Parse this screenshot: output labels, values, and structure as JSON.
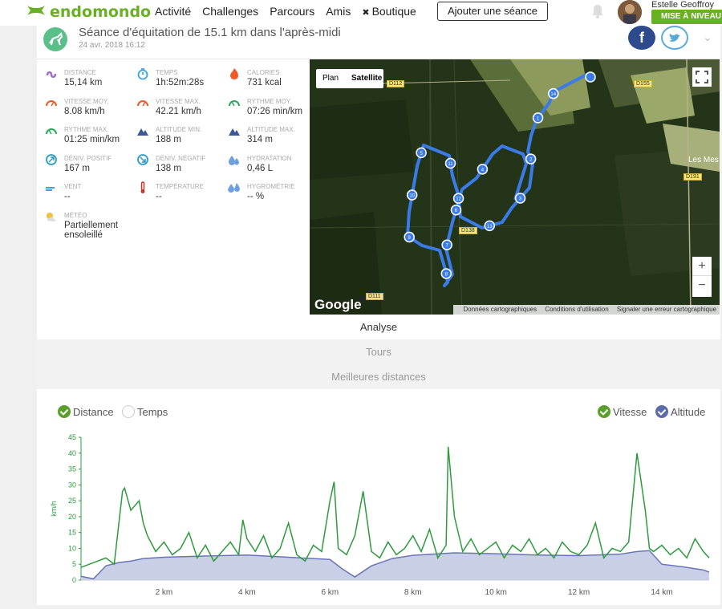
{
  "topbar": {
    "logo_text": "endomondo",
    "nav": [
      "Activité",
      "Challenges",
      "Parcours",
      "Amis",
      "Boutique"
    ],
    "add_button": "Ajouter une séance",
    "username": "Estelle Geoffroy",
    "upgrade": "MISE À NIVEAU"
  },
  "workout": {
    "title": "Séance d'équitation de 15.1 km dans l'après-midi",
    "date": "24 avr. 2018 16:12"
  },
  "share": {
    "facebook_label": "f"
  },
  "stats": [
    {
      "label": "DISTANCE",
      "value": "15,14 km",
      "icon": "distance-icon",
      "color": "#9b6fc9"
    },
    {
      "label": "TEMPS",
      "value": "1h:52m:28s",
      "icon": "stopwatch-icon",
      "color": "#3aa3e3"
    },
    {
      "label": "CALORIES",
      "value": "731 kcal",
      "icon": "flame-icon",
      "color": "#f05a28"
    },
    {
      "label": "VITESSE MOY.",
      "value": "8.08 km/h",
      "icon": "speedometer-icon",
      "color": "#f05a28"
    },
    {
      "label": "VITESSE MAX.",
      "value": "42.21 km/h",
      "icon": "speedometer-icon",
      "color": "#f05a28"
    },
    {
      "label": "RYTHME MOY.",
      "value": "07:26 min/km",
      "icon": "pace-icon",
      "color": "#2fa75a"
    },
    {
      "label": "RYTHME MAX.",
      "value": "01:25 min/km",
      "icon": "pace-icon",
      "color": "#2fa75a"
    },
    {
      "label": "ALTITUDE MIN.",
      "value": "188 m",
      "icon": "mountain-icon",
      "color": "#3b5998"
    },
    {
      "label": "ALTITUDE MAX.",
      "value": "314 m",
      "icon": "mountain-icon",
      "color": "#3b5998"
    },
    {
      "label": "DÉNIV. POSITIF",
      "value": "167 m",
      "icon": "ascent-icon",
      "color": "#2a9ac7"
    },
    {
      "label": "DÉNIV. NÉGATIF",
      "value": "138 m",
      "icon": "descent-icon",
      "color": "#2a9ac7"
    },
    {
      "label": "HYDRATATION",
      "value": "0,46 L",
      "icon": "drops-icon",
      "color": "#6f9fe0"
    },
    {
      "label": "VENT",
      "value": "--",
      "icon": "wind-icon",
      "color": "#3aa3e3"
    },
    {
      "label": "TEMPÉRATURE",
      "value": "--",
      "icon": "thermometer-icon",
      "color": "#c0392b"
    },
    {
      "label": "HYGROMÉTRIE",
      "value": "-- %",
      "icon": "humidity-icon",
      "color": "#6f9fe0"
    },
    {
      "label": "MÉTÉO",
      "value": "Partiellement ensoleillé",
      "icon": "weather-icon",
      "color": "#f0c040"
    }
  ],
  "map": {
    "toggle_plan": "Plan",
    "toggle_satellite": "Satellite",
    "zoom_in": "+",
    "zoom_out": "−",
    "google": "Google",
    "attribution": [
      "Données cartographiques",
      "Conditions d'utilisation",
      "Signaler une erreur cartographique"
    ],
    "roads": [
      "D112",
      "D155",
      "D191",
      "D138",
      "D111"
    ],
    "place": "Les Mes",
    "km_markers": [
      "1",
      "2",
      "3",
      "4",
      "5",
      "6",
      "7",
      "8",
      "9",
      "10",
      "11",
      "12",
      "13",
      "14"
    ]
  },
  "tabs": [
    "Analyse",
    "Tours",
    "Meilleures distances"
  ],
  "chart_toggles": {
    "distance": "Distance",
    "temps": "Temps",
    "vitesse": "Vitesse",
    "altitude": "Altitude"
  },
  "chart_data": {
    "type": "line",
    "xlabel": "",
    "ylabel": "km/h",
    "ylim": [
      0,
      45
    ],
    "yticks": [
      0,
      5,
      10,
      15,
      20,
      25,
      30,
      35,
      40,
      45
    ],
    "xlim": [
      0,
      15.14
    ],
    "xticks": [
      "2 km",
      "4 km",
      "6 km",
      "8 km",
      "10 km",
      "12 km",
      "14 km"
    ],
    "colors": {
      "speed": "#2e9a3e",
      "altitude_fill": "#c9cfe6",
      "altitude_line": "#6a74b4"
    },
    "series": [
      {
        "name": "Vitesse",
        "x": [
          0,
          0.2,
          0.4,
          0.6,
          0.8,
          1.0,
          1.05,
          1.2,
          1.4,
          1.5,
          1.6,
          1.8,
          2.0,
          2.2,
          2.4,
          2.6,
          2.8,
          3.0,
          3.2,
          3.4,
          3.6,
          3.8,
          3.9,
          4.0,
          4.2,
          4.4,
          4.6,
          4.8,
          5.0,
          5.2,
          5.4,
          5.6,
          5.8,
          6.0,
          6.1,
          6.2,
          6.4,
          6.6,
          6.8,
          7.0,
          7.2,
          7.4,
          7.6,
          7.8,
          8.0,
          8.2,
          8.4,
          8.6,
          8.8,
          8.85,
          9.0,
          9.2,
          9.4,
          9.6,
          9.8,
          10.0,
          10.2,
          10.4,
          10.6,
          10.8,
          11.0,
          11.2,
          11.4,
          11.6,
          11.8,
          12.0,
          12.2,
          12.4,
          12.6,
          12.8,
          13.0,
          13.2,
          13.4,
          13.6,
          13.7,
          13.8,
          14.0,
          14.2,
          14.4,
          14.6,
          14.8,
          15.0,
          15.14
        ],
        "values": [
          4,
          5,
          6,
          7,
          5,
          28,
          29,
          22,
          25,
          18,
          14,
          9,
          12,
          8,
          10,
          15,
          7,
          11,
          6,
          9,
          12,
          8,
          19,
          13,
          9,
          14,
          7,
          10,
          18,
          8,
          6,
          11,
          9,
          25,
          31,
          10,
          8,
          14,
          28,
          9,
          7,
          12,
          8,
          10,
          14,
          9,
          16,
          7,
          11,
          42,
          20,
          9,
          13,
          8,
          10,
          12,
          7,
          11,
          9,
          13,
          8,
          10,
          7,
          12,
          9,
          8,
          11,
          18,
          7,
          10,
          9,
          12,
          40,
          22,
          10,
          9,
          11,
          8,
          10,
          7,
          13,
          9,
          7
        ]
      },
      {
        "name": "Altitude",
        "x": [
          0,
          0.3,
          0.6,
          0.9,
          1.2,
          1.5,
          2.0,
          3.0,
          4.0,
          5.0,
          6.0,
          6.3,
          6.6,
          7.0,
          7.5,
          8.0,
          9.0,
          10.0,
          11.0,
          12.0,
          13.0,
          13.4,
          13.7,
          14.0,
          14.5,
          15.0,
          15.14
        ],
        "values": [
          1.2,
          0.4,
          4.5,
          5.5,
          6.0,
          6.8,
          7.2,
          7.6,
          7.9,
          7.2,
          6.5,
          3.5,
          1.0,
          4.5,
          6.8,
          7.8,
          8.6,
          8.3,
          7.9,
          7.7,
          8.2,
          9.0,
          9.3,
          5.0,
          4.2,
          3.2,
          2.5
        ]
      }
    ]
  }
}
